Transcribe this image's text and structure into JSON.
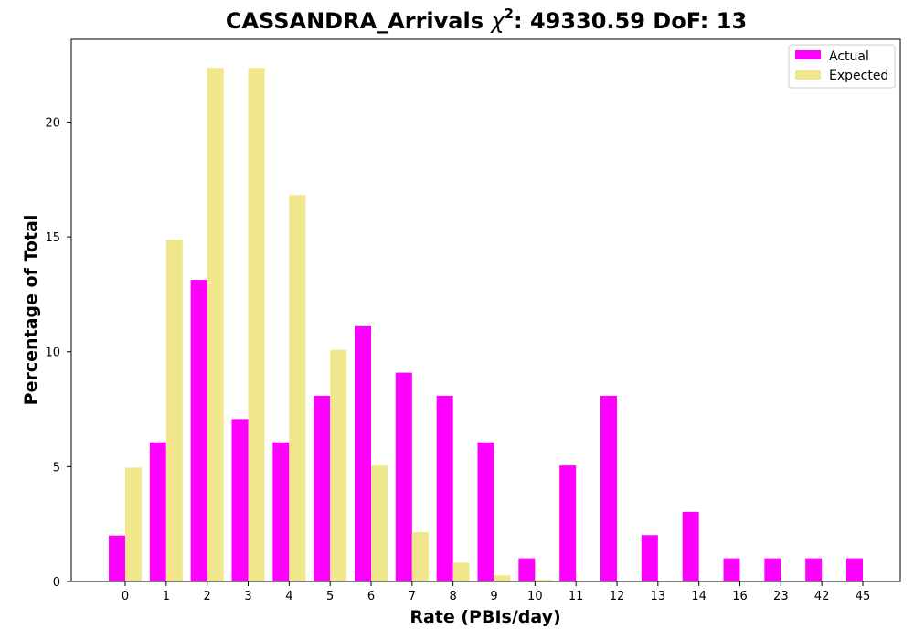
{
  "chart_data": {
    "type": "bar",
    "title_prefix": "CASSANDRA_Arrivals ",
    "title_symbol": "χ",
    "title_superscript": "2",
    "title_suffix": ": 49330.59 DoF: 13",
    "xlabel": "Rate (PBIs/day)",
    "ylabel": "Percentage of Total",
    "categories": [
      "0",
      "1",
      "2",
      "3",
      "4",
      "5",
      "6",
      "7",
      "8",
      "9",
      "10",
      "11",
      "12",
      "13",
      "14",
      "16",
      "23",
      "42",
      "45"
    ],
    "series": [
      {
        "name": "Actual",
        "color": "#ff00ff",
        "values": [
          2.0,
          6.06,
          13.13,
          7.07,
          6.06,
          8.08,
          11.11,
          9.09,
          8.08,
          6.06,
          1.01,
          5.05,
          8.08,
          2.02,
          3.03,
          1.01,
          1.01,
          1.01,
          1.01
        ]
      },
      {
        "name": "Expected",
        "color": "#f0e68c",
        "values": [
          4.96,
          14.88,
          22.36,
          22.36,
          16.82,
          10.08,
          5.05,
          2.15,
          0.82,
          0.27,
          0.08,
          0.02,
          0.005,
          0,
          0,
          0,
          0,
          0,
          0
        ]
      }
    ],
    "ylim": [
      0,
      23.6
    ],
    "yticks": [
      0,
      5,
      10,
      15,
      20
    ],
    "legend_position": "top-right",
    "grid": false
  }
}
